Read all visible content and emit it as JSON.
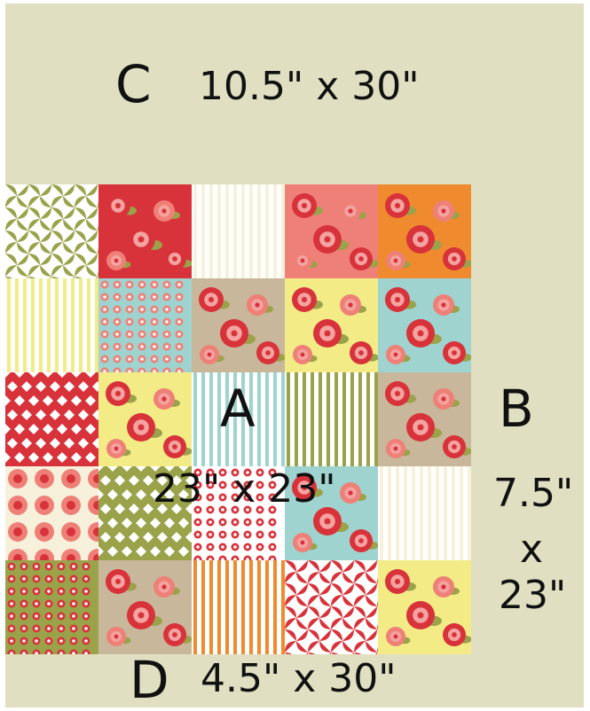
{
  "panels": {
    "top": {
      "letter": "C",
      "size": "10.5\" x 30\""
    },
    "center": {
      "letter": "A",
      "size": "23\" x 23\""
    },
    "right": {
      "letter": "B",
      "size_line1": "7.5\"",
      "size_line2": "x",
      "size_line3": "23\""
    },
    "bottom": {
      "letter": "D",
      "size": "4.5\" x 30\""
    }
  },
  "colors": {
    "background": "#e1dfc1",
    "text": "#111111",
    "red": "#d8323a",
    "coral": "#ee8077",
    "green": "#9aa24a",
    "yellow": "#f3ec86",
    "aqua": "#9fd3cf",
    "orange": "#ef8a2e",
    "taupe": "#c8b79a",
    "cream": "#f7f1dc"
  },
  "quilt_blocks": [
    [
      "pinwheel-green",
      "floral-red",
      "stripe-cream",
      "floral-coral",
      "floral-orange"
    ],
    [
      "stripe-yellow",
      "dot-aqua",
      "floral-taupe",
      "floral-yellow",
      "floral-aqua"
    ],
    [
      "diamond-red",
      "floral-yellow",
      "stripe-aqua",
      "stripe-green",
      "floral-taupe"
    ],
    [
      "rose-cream",
      "diamond-green",
      "dot-red",
      "floral-aqua",
      "stripe-pink"
    ],
    [
      "dot-green",
      "floral-taupe",
      "stripe-orange",
      "pinwheel-red",
      "floral-yellow"
    ]
  ]
}
